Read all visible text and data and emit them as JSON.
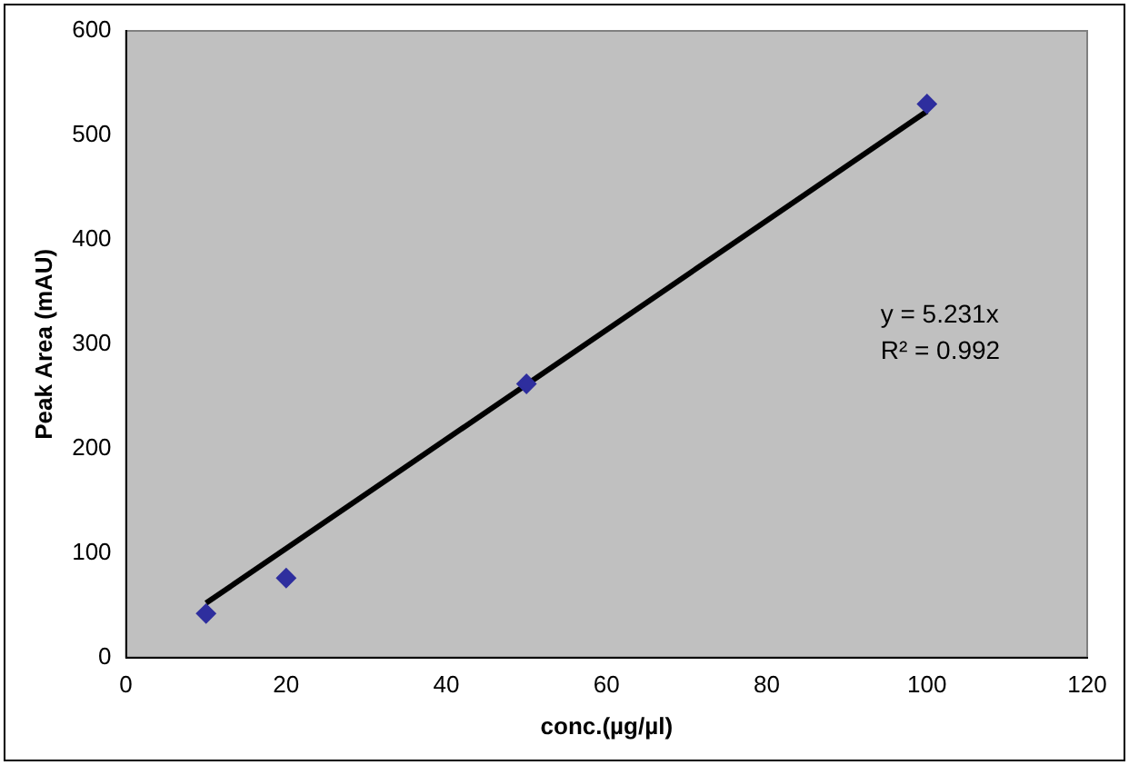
{
  "chart_data": {
    "type": "scatter",
    "xlabel": "conc.(µg/µl)",
    "ylabel": "Peak Area (mAU)",
    "xlim": [
      0,
      120
    ],
    "xticks": [
      0,
      20,
      40,
      60,
      80,
      100,
      120
    ],
    "ylim": [
      0,
      600
    ],
    "yticks": [
      0,
      100,
      200,
      300,
      400,
      500,
      600
    ],
    "grid": false,
    "legend": false,
    "annotations": [
      "y = 5.231x",
      "R² = 0.992"
    ],
    "series": [
      {
        "type": "scatter",
        "marker": "diamond",
        "color": "#2e2e9e",
        "x": [
          10,
          20,
          50,
          100
        ],
        "values": [
          42,
          76,
          262,
          530
        ]
      },
      {
        "type": "line",
        "marker": "none",
        "color": "#000000",
        "x": [
          10,
          100
        ],
        "values": [
          52,
          523
        ]
      }
    ]
  }
}
